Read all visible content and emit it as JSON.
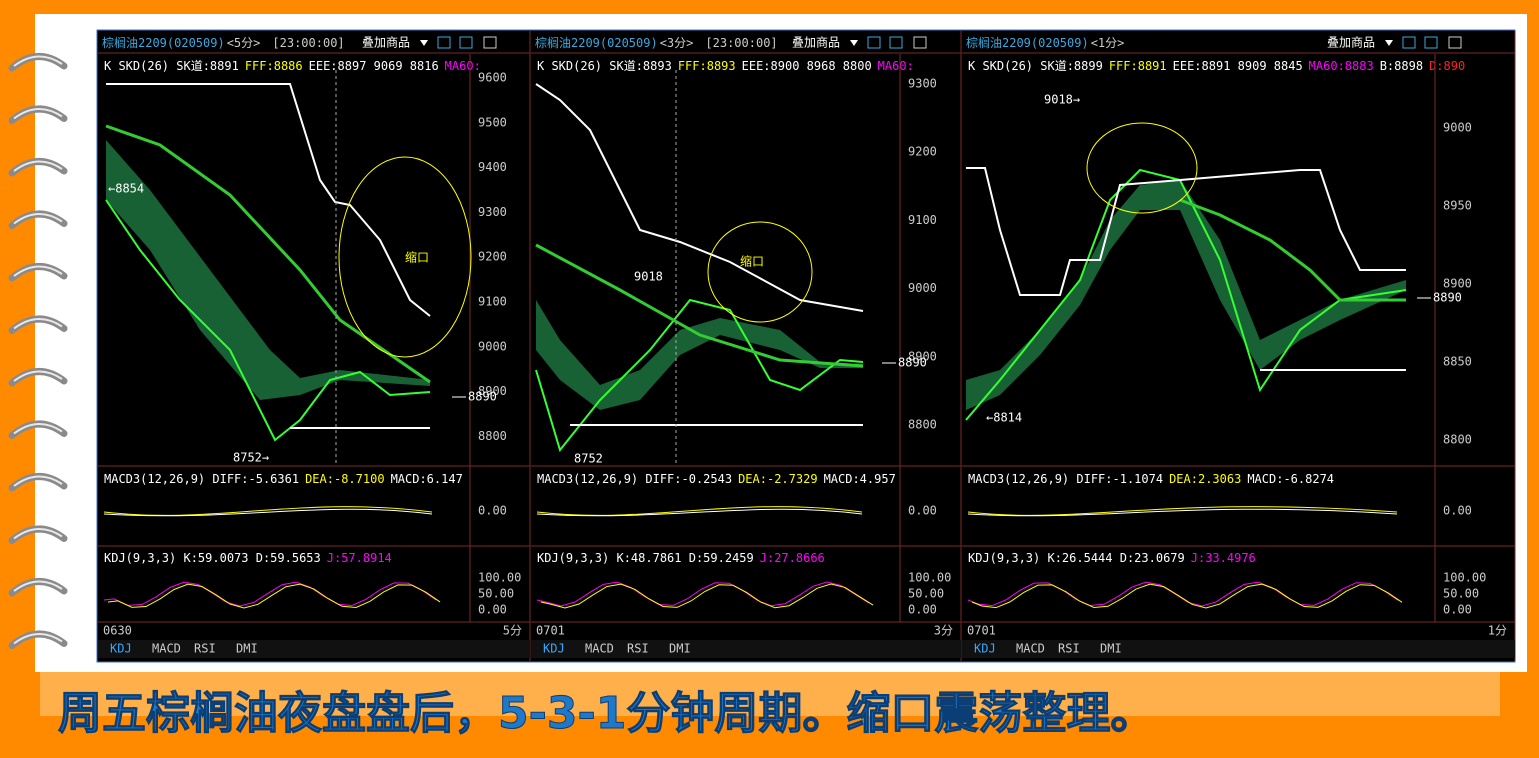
{
  "panels": [
    {
      "header": {
        "symbol": "棕榈油2209(020509)",
        "period": "<5分>",
        "time": "[23:00:00]",
        "overlay": "叠加商品"
      },
      "main_legend": [
        "K SKD(26) SK道:8891",
        "FFF:8886",
        "EEE:8897 9069 8816",
        "MA60:"
      ],
      "price_axis": [
        "9600",
        "9500",
        "9400",
        "9300",
        "9200",
        "9100",
        "9000",
        "8900",
        "8800"
      ],
      "last_price": "8890",
      "annotations": [
        "←8854",
        "8752→",
        "缩口"
      ],
      "macd_legend": [
        "MACD3(12,26,9) DIFF:-5.6361",
        "DEA:-8.7100",
        "MACD:6.147"
      ],
      "macd_axis": "0.00",
      "kdj_legend": [
        "KDJ(9,3,3) K:59.0073 D:59.5653",
        "J:57.8914"
      ],
      "kdj_axis": [
        "100.00",
        "50.00",
        "0.00"
      ],
      "date": "0630",
      "period_label": "5分",
      "tabs": [
        "KDJ",
        "MACD",
        "RSI",
        "DMI"
      ]
    },
    {
      "header": {
        "symbol": "棕榈油2209(020509)",
        "period": "<3分>",
        "time": "[23:00:00]",
        "overlay": "叠加商品"
      },
      "main_legend": [
        "K SKD(26) SK道:8893",
        "FFF:8893",
        "EEE:8900 8968 8800",
        "MA60:"
      ],
      "price_axis": [
        "9300",
        "9200",
        "9100",
        "9000",
        "8900",
        "8800"
      ],
      "last_price": "8890",
      "annotations": [
        "9018",
        "8752",
        "缩口"
      ],
      "macd_legend": [
        "MACD3(12,26,9) DIFF:-0.2543",
        "DEA:-2.7329",
        "MACD:4.957"
      ],
      "macd_axis": "0.00",
      "kdj_legend": [
        "KDJ(9,3,3) K:48.7861 D:59.2459",
        "J:27.8666"
      ],
      "kdj_axis": [
        "100.00",
        "50.00",
        "0.00"
      ],
      "date": "0701",
      "period_label": "3分",
      "tabs": [
        "KDJ",
        "MACD",
        "RSI",
        "DMI"
      ]
    },
    {
      "header": {
        "symbol": "棕榈油2209(020509)",
        "period": "<1分>",
        "overlay": "叠加商品"
      },
      "main_legend": [
        "K SKD(26) SK道:8899",
        "FFF:8891",
        "EEE:8891 8909 8845",
        "MA60:8883",
        "B:8898",
        "D:890"
      ],
      "price_axis": [
        "9000",
        "8950",
        "8900",
        "8850",
        "8800"
      ],
      "last_price": "8890",
      "annotations": [
        "9018→",
        "←8814"
      ],
      "macd_legend": [
        "MACD3(12,26,9) DIFF:-1.1074",
        "DEA:2.3063",
        "MACD:-6.8274"
      ],
      "macd_axis": "0.00",
      "kdj_legend": [
        "KDJ(9,3,3) K:26.5444 D:23.0679",
        "J:33.4976"
      ],
      "kdj_axis": [
        "100.00",
        "50.00",
        "0.00"
      ],
      "date": "0701",
      "period_label": "1分",
      "tabs": [
        "KDJ",
        "MACD",
        "RSI",
        "DMI"
      ]
    }
  ],
  "caption": "周五棕榈油夜盘盘后，5-3-1分钟周期。缩口震荡整理。"
}
